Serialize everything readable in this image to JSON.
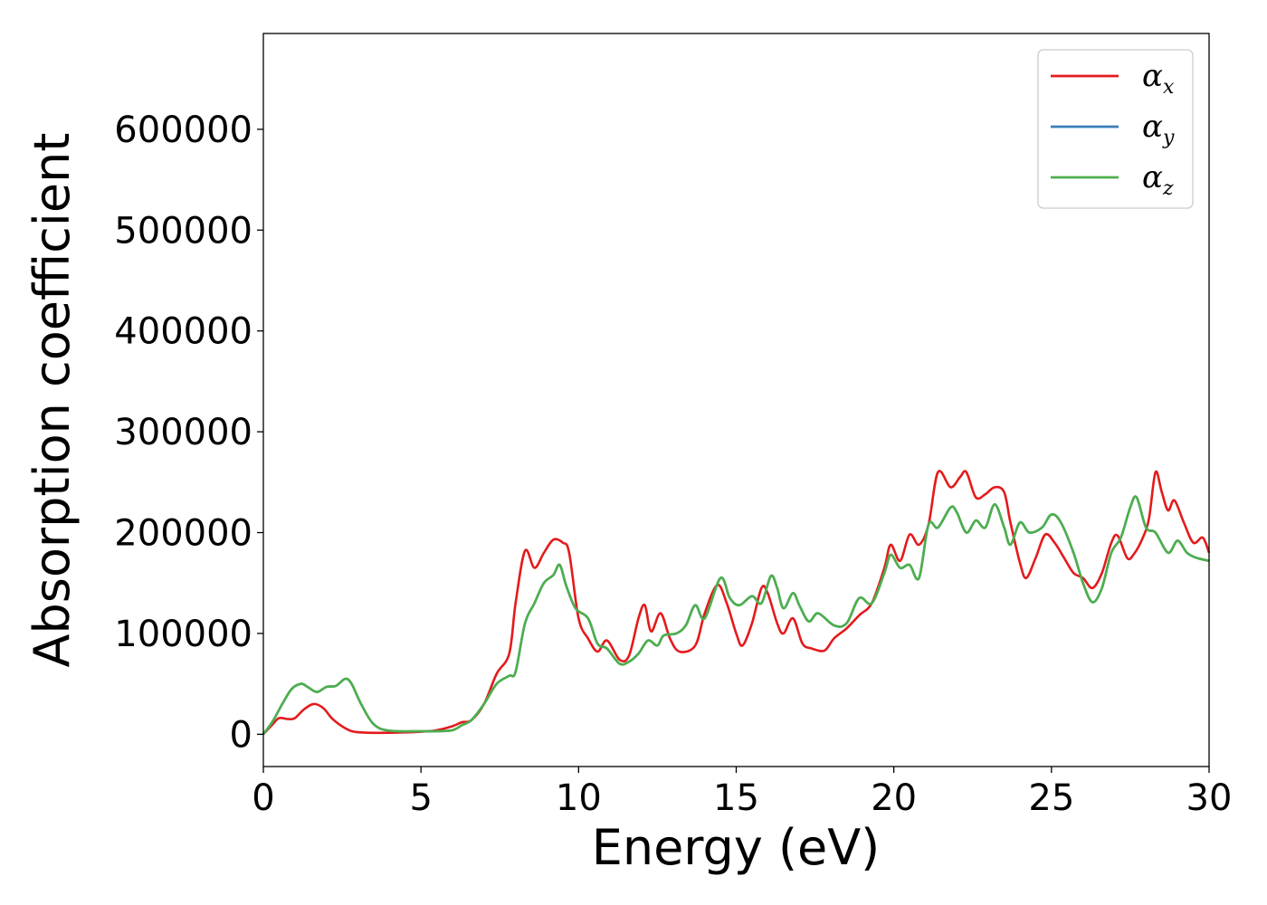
{
  "chart_data": {
    "type": "line",
    "title": "",
    "xlabel": "Energy (eV)",
    "ylabel": "Absorption coefficient",
    "xlim": [
      0,
      30
    ],
    "ylim": [
      -32000,
      695000
    ],
    "xticks": [
      0,
      5,
      10,
      15,
      20,
      25,
      30
    ],
    "yticks": [
      0,
      100000,
      200000,
      300000,
      400000,
      500000,
      600000
    ],
    "grid": false,
    "legend_position": "top-right",
    "series": [
      {
        "name": "α_x",
        "base": "α",
        "sub": "x",
        "color": "#e41a1c",
        "points": [
          [
            0,
            0
          ],
          [
            0.3,
            10000
          ],
          [
            0.5,
            16000
          ],
          [
            0.8,
            15000
          ],
          [
            1.0,
            16000
          ],
          [
            1.3,
            25000
          ],
          [
            1.6,
            30000
          ],
          [
            1.9,
            26000
          ],
          [
            2.2,
            15000
          ],
          [
            2.6,
            6000
          ],
          [
            3.0,
            2000
          ],
          [
            4,
            1500
          ],
          [
            5,
            2500
          ],
          [
            5.5,
            4000
          ],
          [
            6.0,
            8000
          ],
          [
            6.3,
            12000
          ],
          [
            6.6,
            14000
          ],
          [
            7.0,
            30000
          ],
          [
            7.4,
            60000
          ],
          [
            7.8,
            80000
          ],
          [
            8.0,
            130000
          ],
          [
            8.3,
            182000
          ],
          [
            8.6,
            165000
          ],
          [
            8.9,
            180000
          ],
          [
            9.2,
            193000
          ],
          [
            9.5,
            190000
          ],
          [
            9.7,
            180000
          ],
          [
            10.0,
            115000
          ],
          [
            10.3,
            95000
          ],
          [
            10.6,
            82000
          ],
          [
            10.9,
            93000
          ],
          [
            11.3,
            74000
          ],
          [
            11.6,
            78000
          ],
          [
            11.9,
            115000
          ],
          [
            12.1,
            128000
          ],
          [
            12.3,
            102000
          ],
          [
            12.6,
            120000
          ],
          [
            12.9,
            95000
          ],
          [
            13.2,
            82000
          ],
          [
            13.7,
            88000
          ],
          [
            14.0,
            120000
          ],
          [
            14.4,
            148000
          ],
          [
            14.7,
            130000
          ],
          [
            15.0,
            100000
          ],
          [
            15.2,
            88000
          ],
          [
            15.5,
            110000
          ],
          [
            15.8,
            145000
          ],
          [
            16.0,
            140000
          ],
          [
            16.3,
            110000
          ],
          [
            16.5,
            100000
          ],
          [
            16.8,
            115000
          ],
          [
            17.1,
            90000
          ],
          [
            17.4,
            85000
          ],
          [
            17.8,
            83000
          ],
          [
            18.1,
            95000
          ],
          [
            18.5,
            105000
          ],
          [
            18.9,
            118000
          ],
          [
            19.3,
            130000
          ],
          [
            19.7,
            165000
          ],
          [
            19.9,
            188000
          ],
          [
            20.2,
            172000
          ],
          [
            20.5,
            198000
          ],
          [
            20.8,
            188000
          ],
          [
            21.1,
            208000
          ],
          [
            21.4,
            260000
          ],
          [
            21.8,
            245000
          ],
          [
            22.1,
            255000
          ],
          [
            22.3,
            260000
          ],
          [
            22.6,
            235000
          ],
          [
            22.9,
            238000
          ],
          [
            23.2,
            245000
          ],
          [
            23.5,
            240000
          ],
          [
            23.7,
            210000
          ],
          [
            24.0,
            170000
          ],
          [
            24.2,
            155000
          ],
          [
            24.5,
            175000
          ],
          [
            24.8,
            198000
          ],
          [
            25.1,
            190000
          ],
          [
            25.4,
            175000
          ],
          [
            25.7,
            160000
          ],
          [
            26.0,
            155000
          ],
          [
            26.3,
            145000
          ],
          [
            26.6,
            160000
          ],
          [
            26.9,
            190000
          ],
          [
            27.1,
            197000
          ],
          [
            27.4,
            175000
          ],
          [
            27.6,
            178000
          ],
          [
            27.9,
            195000
          ],
          [
            28.1,
            215000
          ],
          [
            28.3,
            260000
          ],
          [
            28.5,
            240000
          ],
          [
            28.7,
            222000
          ],
          [
            28.9,
            232000
          ],
          [
            29.2,
            210000
          ],
          [
            29.5,
            190000
          ],
          [
            29.8,
            195000
          ],
          [
            30,
            180000
          ]
        ]
      },
      {
        "name": "α_y",
        "base": "α",
        "sub": "y",
        "color": "#377eb8",
        "points": [
          [
            0,
            0
          ],
          [
            0.3,
            13000
          ],
          [
            0.6,
            30000
          ],
          [
            0.9,
            45000
          ],
          [
            1.2,
            50000
          ],
          [
            1.4,
            47000
          ],
          [
            1.7,
            42000
          ],
          [
            2.0,
            47000
          ],
          [
            2.3,
            48000
          ],
          [
            2.6,
            55000
          ],
          [
            2.8,
            50000
          ],
          [
            3.1,
            30000
          ],
          [
            3.5,
            10000
          ],
          [
            4,
            3500
          ],
          [
            5,
            3000
          ],
          [
            5.5,
            3000
          ],
          [
            6.0,
            4000
          ],
          [
            6.3,
            9000
          ],
          [
            6.6,
            14000
          ],
          [
            7.0,
            30000
          ],
          [
            7.4,
            50000
          ],
          [
            7.8,
            58000
          ],
          [
            8.0,
            62000
          ],
          [
            8.3,
            110000
          ],
          [
            8.6,
            130000
          ],
          [
            8.9,
            150000
          ],
          [
            9.2,
            158000
          ],
          [
            9.4,
            168000
          ],
          [
            9.6,
            148000
          ],
          [
            9.9,
            125000
          ],
          [
            10.3,
            115000
          ],
          [
            10.6,
            90000
          ],
          [
            10.9,
            85000
          ],
          [
            11.3,
            70000
          ],
          [
            11.6,
            72000
          ],
          [
            11.9,
            80000
          ],
          [
            12.2,
            93000
          ],
          [
            12.5,
            88000
          ],
          [
            12.7,
            98000
          ],
          [
            13.1,
            100000
          ],
          [
            13.4,
            108000
          ],
          [
            13.7,
            128000
          ],
          [
            14.0,
            115000
          ],
          [
            14.5,
            155000
          ],
          [
            14.8,
            135000
          ],
          [
            15.1,
            128000
          ],
          [
            15.5,
            137000
          ],
          [
            15.8,
            130000
          ],
          [
            16.1,
            157000
          ],
          [
            16.3,
            145000
          ],
          [
            16.5,
            125000
          ],
          [
            16.8,
            140000
          ],
          [
            17.0,
            128000
          ],
          [
            17.3,
            112000
          ],
          [
            17.6,
            120000
          ],
          [
            18.1,
            108000
          ],
          [
            18.5,
            110000
          ],
          [
            18.9,
            135000
          ],
          [
            19.3,
            130000
          ],
          [
            19.7,
            160000
          ],
          [
            19.9,
            178000
          ],
          [
            20.2,
            165000
          ],
          [
            20.5,
            168000
          ],
          [
            20.8,
            155000
          ],
          [
            21.1,
            208000
          ],
          [
            21.4,
            205000
          ],
          [
            21.8,
            225000
          ],
          [
            22.0,
            220000
          ],
          [
            22.3,
            200000
          ],
          [
            22.6,
            212000
          ],
          [
            22.9,
            205000
          ],
          [
            23.2,
            228000
          ],
          [
            23.5,
            205000
          ],
          [
            23.7,
            188000
          ],
          [
            24.0,
            210000
          ],
          [
            24.3,
            200000
          ],
          [
            24.7,
            205000
          ],
          [
            25.0,
            218000
          ],
          [
            25.3,
            210000
          ],
          [
            25.7,
            180000
          ],
          [
            26.0,
            150000
          ],
          [
            26.3,
            131000
          ],
          [
            26.6,
            145000
          ],
          [
            26.9,
            180000
          ],
          [
            27.2,
            195000
          ],
          [
            27.5,
            225000
          ],
          [
            27.7,
            235000
          ],
          [
            28.0,
            205000
          ],
          [
            28.3,
            200000
          ],
          [
            28.7,
            180000
          ],
          [
            29.0,
            192000
          ],
          [
            29.3,
            180000
          ],
          [
            29.6,
            175000
          ],
          [
            30,
            172000
          ]
        ]
      },
      {
        "name": "α_z",
        "base": "α",
        "sub": "z",
        "color": "#4daf4a",
        "points": [
          [
            0,
            0
          ],
          [
            0.3,
            13000
          ],
          [
            0.6,
            30000
          ],
          [
            0.9,
            45000
          ],
          [
            1.2,
            50000
          ],
          [
            1.4,
            47000
          ],
          [
            1.7,
            42000
          ],
          [
            2.0,
            47000
          ],
          [
            2.3,
            48000
          ],
          [
            2.6,
            55000
          ],
          [
            2.8,
            50000
          ],
          [
            3.1,
            30000
          ],
          [
            3.5,
            10000
          ],
          [
            4,
            3500
          ],
          [
            5,
            3000
          ],
          [
            5.5,
            3000
          ],
          [
            6.0,
            4000
          ],
          [
            6.3,
            9000
          ],
          [
            6.6,
            14000
          ],
          [
            7.0,
            30000
          ],
          [
            7.4,
            50000
          ],
          [
            7.8,
            58000
          ],
          [
            8.0,
            62000
          ],
          [
            8.3,
            110000
          ],
          [
            8.6,
            130000
          ],
          [
            8.9,
            150000
          ],
          [
            9.2,
            158000
          ],
          [
            9.4,
            168000
          ],
          [
            9.6,
            148000
          ],
          [
            9.9,
            125000
          ],
          [
            10.3,
            115000
          ],
          [
            10.6,
            90000
          ],
          [
            10.9,
            85000
          ],
          [
            11.3,
            70000
          ],
          [
            11.6,
            72000
          ],
          [
            11.9,
            80000
          ],
          [
            12.2,
            93000
          ],
          [
            12.5,
            88000
          ],
          [
            12.7,
            98000
          ],
          [
            13.1,
            100000
          ],
          [
            13.4,
            108000
          ],
          [
            13.7,
            128000
          ],
          [
            14.0,
            115000
          ],
          [
            14.5,
            155000
          ],
          [
            14.8,
            135000
          ],
          [
            15.1,
            128000
          ],
          [
            15.5,
            137000
          ],
          [
            15.8,
            130000
          ],
          [
            16.1,
            157000
          ],
          [
            16.3,
            145000
          ],
          [
            16.5,
            125000
          ],
          [
            16.8,
            140000
          ],
          [
            17.0,
            128000
          ],
          [
            17.3,
            112000
          ],
          [
            17.6,
            120000
          ],
          [
            18.1,
            108000
          ],
          [
            18.5,
            110000
          ],
          [
            18.9,
            135000
          ],
          [
            19.3,
            130000
          ],
          [
            19.7,
            160000
          ],
          [
            19.9,
            178000
          ],
          [
            20.2,
            165000
          ],
          [
            20.5,
            168000
          ],
          [
            20.8,
            155000
          ],
          [
            21.1,
            208000
          ],
          [
            21.4,
            205000
          ],
          [
            21.8,
            225000
          ],
          [
            22.0,
            220000
          ],
          [
            22.3,
            200000
          ],
          [
            22.6,
            212000
          ],
          [
            22.9,
            205000
          ],
          [
            23.2,
            228000
          ],
          [
            23.5,
            205000
          ],
          [
            23.7,
            188000
          ],
          [
            24.0,
            210000
          ],
          [
            24.3,
            200000
          ],
          [
            24.7,
            205000
          ],
          [
            25.0,
            218000
          ],
          [
            25.3,
            210000
          ],
          [
            25.7,
            180000
          ],
          [
            26.0,
            150000
          ],
          [
            26.3,
            131000
          ],
          [
            26.6,
            145000
          ],
          [
            26.9,
            180000
          ],
          [
            27.2,
            195000
          ],
          [
            27.5,
            225000
          ],
          [
            27.7,
            235000
          ],
          [
            28.0,
            205000
          ],
          [
            28.3,
            200000
          ],
          [
            28.7,
            180000
          ],
          [
            29.0,
            192000
          ],
          [
            29.3,
            180000
          ],
          [
            29.6,
            175000
          ],
          [
            30,
            172000
          ]
        ]
      }
    ]
  }
}
